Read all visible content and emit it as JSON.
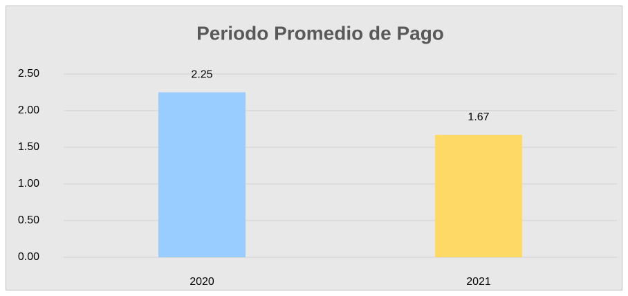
{
  "chart_data": {
    "type": "bar",
    "title": "Periodo Promedio de Pago",
    "categories": [
      "2020",
      "2021"
    ],
    "values": [
      2.25,
      1.67
    ],
    "colors": [
      "#99ccff",
      "#ffd966"
    ],
    "ylim": [
      0,
      2.5
    ],
    "yticks": [
      {
        "value": 0,
        "label": "0.00"
      },
      {
        "value": 0.5,
        "label": "0.50"
      },
      {
        "value": 1,
        "label": "1.00"
      },
      {
        "value": 1.5,
        "label": "1.50"
      },
      {
        "value": 2,
        "label": "2.00"
      },
      {
        "value": 2.5,
        "label": "2.50"
      }
    ],
    "grid": true
  }
}
